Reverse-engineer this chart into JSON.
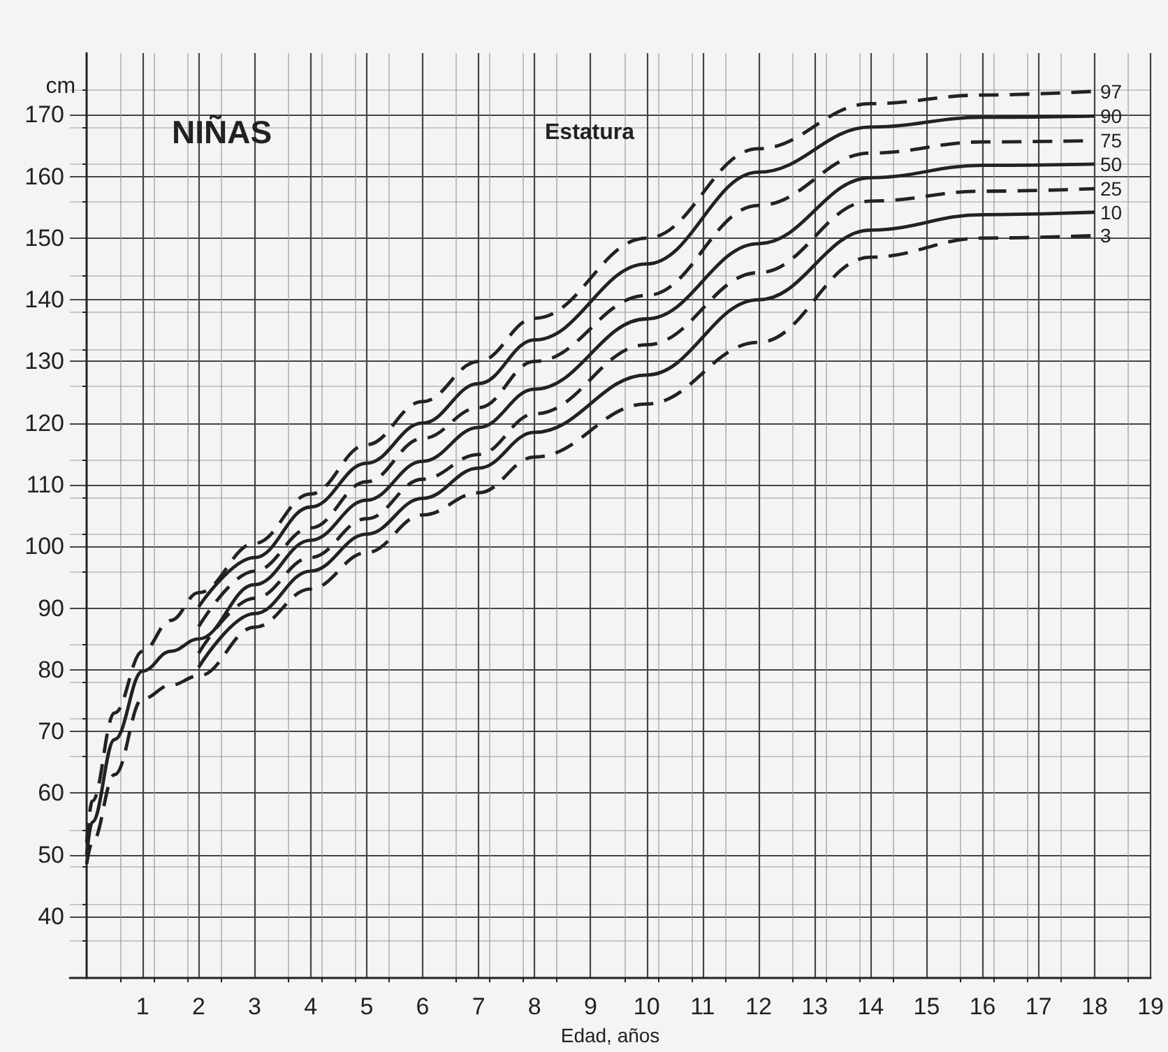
{
  "chart_data": {
    "type": "line",
    "title": "NIÑAS",
    "subtitle": "Estatura",
    "xlabel": "Edad, años",
    "ylabel": "cm",
    "xlim": [
      -0.3,
      19
    ],
    "xticks": [
      1,
      2,
      3,
      4,
      5,
      6,
      7,
      8,
      9,
      10,
      11,
      12,
      13,
      14,
      15,
      16,
      17,
      18,
      19
    ],
    "ylim": [
      30,
      180
    ],
    "yticks": [
      40,
      50,
      60,
      70,
      80,
      90,
      100,
      110,
      120,
      130,
      140,
      150,
      160,
      170
    ],
    "grid": true,
    "legend": false,
    "marker": "none",
    "series": [
      {
        "name": "97",
        "color": "#222222",
        "line_style": "dashed",
        "x": [
          0,
          0.1,
          0.5,
          1,
          1.5,
          2,
          3,
          4,
          5,
          6,
          7,
          8,
          10,
          12,
          14,
          16,
          18
        ],
        "values": [
          52,
          58.7,
          73,
          83,
          88,
          92.5,
          100.5,
          108.5,
          116.5,
          123.5,
          130,
          137,
          150,
          164.5,
          171.8,
          173.2,
          173.8
        ]
      },
      {
        "name": "90",
        "color": "#222222",
        "line_style": "solid",
        "x": [
          2,
          3,
          4,
          5,
          6,
          7,
          8,
          10,
          12,
          14,
          16,
          18
        ],
        "values": [
          90.2,
          98.2,
          106.4,
          113.5,
          120,
          126.4,
          133.5,
          145.8,
          160.7,
          168,
          169.6,
          169.8
        ]
      },
      {
        "name": "75",
        "color": "#222222",
        "line_style": "dashed",
        "x": [
          2,
          3,
          4,
          5,
          6,
          7,
          8,
          10,
          12,
          14,
          16,
          18
        ],
        "values": [
          87,
          96,
          103,
          110.5,
          117.5,
          122.5,
          130,
          140.7,
          155.3,
          163.8,
          165.6,
          165.8
        ]
      },
      {
        "name": "50",
        "color": "#222222",
        "line_style": "solid",
        "x": [
          0,
          0.1,
          0.5,
          1,
          1.5,
          2,
          3,
          4,
          5,
          6,
          7,
          8,
          10,
          12,
          14,
          16,
          18
        ],
        "values": [
          50,
          55.3,
          68.7,
          79.8,
          83,
          85,
          93.8,
          101,
          107.5,
          113.8,
          119.3,
          125.5,
          136.9,
          149.1,
          159.8,
          161.8,
          162
        ]
      },
      {
        "name": "25",
        "color": "#222222",
        "line_style": "dashed",
        "x": [
          2,
          3,
          4,
          5,
          6,
          7,
          8,
          10,
          12,
          14,
          16,
          18
        ],
        "values": [
          82.7,
          91.6,
          98.2,
          104.5,
          110.9,
          114.9,
          121.5,
          132.7,
          144.4,
          156,
          157.6,
          158
        ]
      },
      {
        "name": "10",
        "color": "#222222",
        "line_style": "solid",
        "x": [
          2,
          3,
          4,
          5,
          6,
          7,
          8,
          10,
          12,
          14,
          16,
          18
        ],
        "values": [
          80.4,
          89.1,
          96,
          102,
          107.8,
          112.7,
          118.5,
          127.8,
          140,
          151.3,
          153.8,
          154.2
        ]
      },
      {
        "name": "3",
        "color": "#222222",
        "line_style": "dashed",
        "x": [
          0,
          0.1,
          0.5,
          1,
          1.5,
          2,
          3,
          4,
          5,
          6,
          7,
          8,
          10,
          12,
          14,
          16,
          18
        ],
        "values": [
          48.5,
          52,
          63,
          75.3,
          77.5,
          79,
          86.9,
          93.1,
          99,
          105.1,
          108.7,
          114.5,
          123.1,
          133.1,
          146.9,
          150,
          150.4
        ]
      }
    ]
  }
}
